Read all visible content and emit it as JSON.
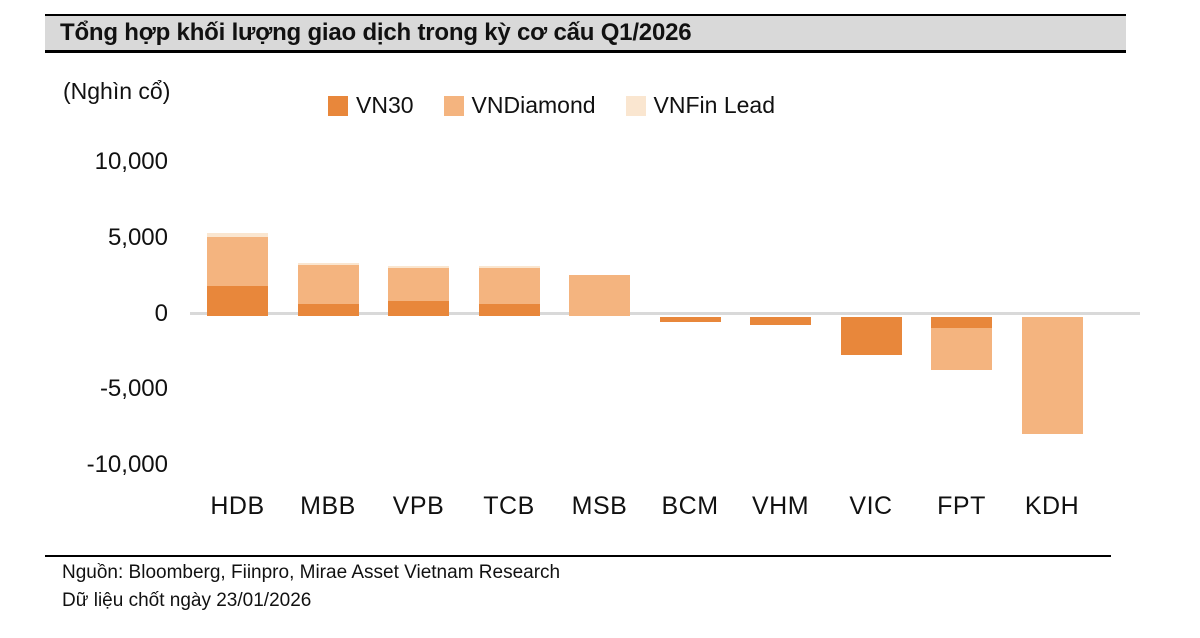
{
  "title": "Tổng hợp khối lượng giao dịch trong kỳ cơ cấu Q1/2026",
  "unit_label": "(Nghìn cổ)",
  "legend": [
    {
      "label": "VN30",
      "color": "#e8873b"
    },
    {
      "label": "VNDiamond",
      "color": "#f4b47f"
    },
    {
      "label": "VNFin Lead",
      "color": "#fae6d0"
    }
  ],
  "footer": {
    "source_line": "Nguồn: Bloomberg, Fiinpro, Mirae Asset Vietnam Research",
    "date_line": "Dữ liệu chốt ngày 23/01/2026"
  },
  "chart_data": {
    "type": "bar",
    "stacked": true,
    "title": "Tổng hợp khối lượng giao dịch trong kỳ cơ cấu Q1/2026",
    "ylabel": "Nghìn cổ",
    "xlabel": "",
    "categories": [
      "HDB",
      "MBB",
      "VPB",
      "TCB",
      "MSB",
      "BCM",
      "VHM",
      "VIC",
      "FPT",
      "KDH"
    ],
    "series": [
      {
        "name": "VN30",
        "color": "#e8873b",
        "values": [
          2000,
          800,
          1000,
          800,
          0,
          -300,
          -500,
          -2500,
          -700,
          0
        ]
      },
      {
        "name": "VNDiamond",
        "color": "#f4b47f",
        "values": [
          3200,
          2600,
          2200,
          2400,
          2700,
          0,
          0,
          0,
          -2800,
          -7700
        ]
      },
      {
        "name": "VNFin Lead",
        "color": "#fae6d0",
        "values": [
          300,
          100,
          100,
          100,
          0,
          0,
          0,
          0,
          0,
          0
        ]
      }
    ],
    "totals": [
      5500,
      3500,
      3300,
      3300,
      2700,
      -300,
      -500,
      -2500,
      -3500,
      -7700
    ],
    "y_ticks": [
      10000,
      5000,
      0,
      -5000,
      -10000
    ],
    "y_tick_labels": [
      "10,000",
      "5,000",
      "0",
      "-5,000",
      "-10,000"
    ],
    "ylim": [
      -10000,
      11000
    ],
    "grid": false,
    "legend_position": "top"
  }
}
